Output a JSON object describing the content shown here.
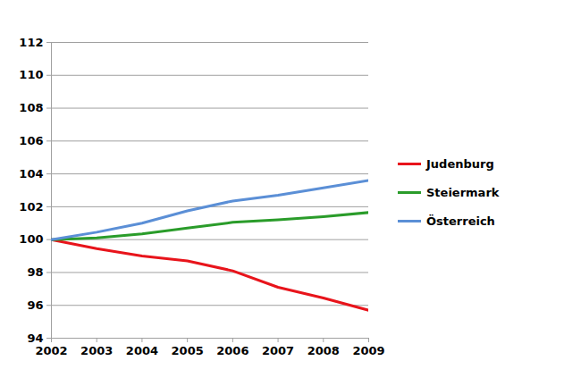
{
  "chart_data": {
    "type": "line",
    "x": [
      2002,
      2003,
      2004,
      2005,
      2006,
      2007,
      2008,
      2009
    ],
    "series": [
      {
        "name": "Judenburg",
        "color": "#e8141b",
        "values": [
          100,
          99.45,
          99.0,
          98.7,
          98.1,
          97.1,
          96.45,
          95.7
        ]
      },
      {
        "name": "Steiermark",
        "color": "#2a9c2a",
        "values": [
          100,
          100.1,
          100.35,
          100.7,
          101.05,
          101.2,
          101.4,
          101.65
        ]
      },
      {
        "name": "Österreich",
        "color": "#5b8fd6",
        "values": [
          100,
          100.45,
          101.0,
          101.75,
          102.35,
          102.7,
          103.15,
          103.6
        ]
      }
    ],
    "xlim": [
      2002,
      2009
    ],
    "xticks": [
      2002,
      2003,
      2004,
      2005,
      2006,
      2007,
      2008,
      2009
    ],
    "ylim": [
      94,
      112
    ],
    "yticks": [
      94,
      96,
      98,
      100,
      102,
      104,
      106,
      108,
      110,
      112
    ],
    "grid": true,
    "legend": "right"
  }
}
